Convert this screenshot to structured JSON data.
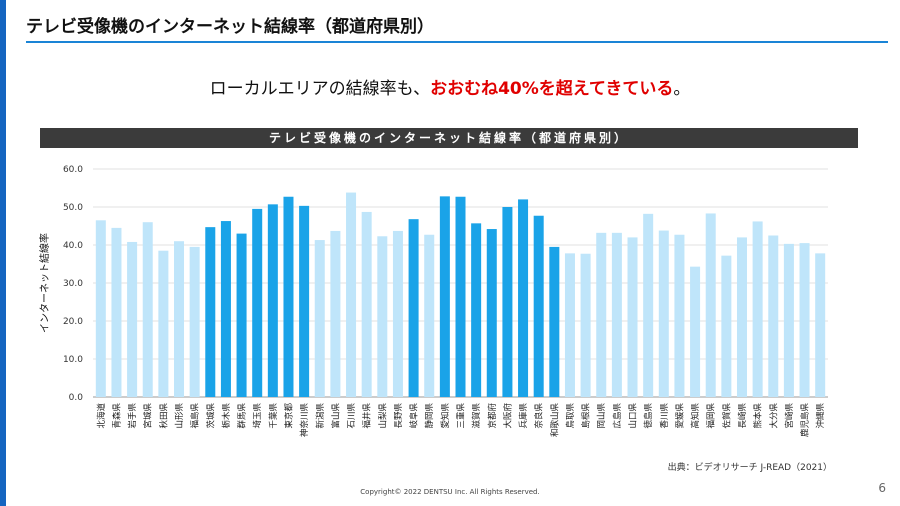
{
  "header": {
    "title": "テレビ受像機のインターネット結線率（都道府県別）"
  },
  "lead": {
    "text": "ローカルエリアの結線率も、",
    "highlight": "おおむね40%を超えてきている",
    "suffix": "。"
  },
  "source": "出典：ビデオリサーチ J-READ（2021）",
  "copyright": "Copyright© 2022 DENTSU Inc. All Rights Reserved.",
  "page_number": "6",
  "colors": {
    "highlight_bar": "#1aa3e8",
    "normal_bar": "#bfe5fa",
    "accent": "#1565c0"
  },
  "chart_data": {
    "type": "bar",
    "title": "テレビ受像機のインターネット結線率（都道府県別）",
    "ylabel": "インターネット結線率",
    "xlabel": "",
    "ylim": [
      0,
      60
    ],
    "yticks": [
      "0.0",
      "10.0",
      "20.0",
      "30.0",
      "40.0",
      "50.0",
      "60.0"
    ],
    "grid": true,
    "categories": [
      "北海道",
      "青森県",
      "岩手県",
      "宮城県",
      "秋田県",
      "山形県",
      "福島県",
      "茨城県",
      "栃木県",
      "群馬県",
      "埼玉県",
      "千葉県",
      "東京都",
      "神奈川県",
      "新潟県",
      "富山県",
      "石川県",
      "福井県",
      "山梨県",
      "長野県",
      "岐阜県",
      "静岡県",
      "愛知県",
      "三重県",
      "滋賀県",
      "京都府",
      "大阪府",
      "兵庫県",
      "奈良県",
      "和歌山県",
      "鳥取県",
      "島根県",
      "岡山県",
      "広島県",
      "山口県",
      "徳島県",
      "香川県",
      "愛媛県",
      "高知県",
      "福岡県",
      "佐賀県",
      "長崎県",
      "熊本県",
      "大分県",
      "宮崎県",
      "鹿児島県",
      "沖縄県"
    ],
    "values": [
      46.5,
      44.5,
      40.8,
      46,
      38.5,
      41,
      39.5,
      44.7,
      46.3,
      43,
      49.5,
      50.7,
      52.7,
      50.3,
      41.3,
      43.7,
      53.8,
      48.7,
      42.3,
      43.7,
      46.8,
      42.7,
      52.8,
      52.7,
      45.7,
      44.2,
      50,
      52,
      47.7,
      39.5,
      37.8,
      37.7,
      43.2,
      43.2,
      42,
      48.2,
      43.8,
      42.7,
      34.3,
      48.3,
      37.2,
      42,
      46.2,
      42.5,
      40.3,
      40.5,
      37.8
    ],
    "highlight": [
      false,
      false,
      false,
      false,
      false,
      false,
      false,
      true,
      true,
      true,
      true,
      true,
      true,
      true,
      false,
      false,
      false,
      false,
      false,
      false,
      true,
      false,
      true,
      true,
      true,
      true,
      true,
      true,
      true,
      true,
      false,
      false,
      false,
      false,
      false,
      false,
      false,
      false,
      false,
      false,
      false,
      false,
      false,
      false,
      false,
      false,
      false
    ]
  }
}
